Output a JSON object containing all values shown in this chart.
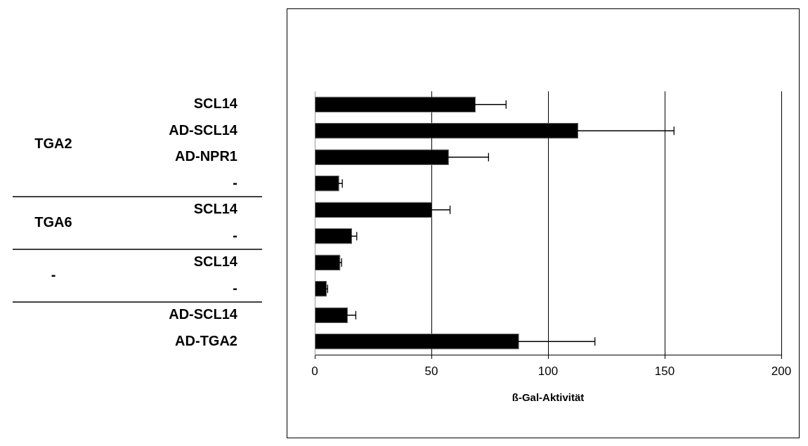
{
  "chart_data": {
    "type": "bar",
    "orientation": "horizontal",
    "xlabel": "ß-Gal-Aktivität",
    "categories": [
      "SCL14",
      "AD-SCL14",
      "AD-NPR1",
      "-",
      "SCL14",
      "-",
      "SCL14",
      "-",
      "AD-SCL14",
      "AD-TGA2"
    ],
    "values": [
      69,
      113,
      57.5,
      10.5,
      50.4,
      16,
      11,
      5.2,
      14.2,
      87.6
    ],
    "errors": [
      13,
      41,
      17,
      1.3,
      7.6,
      2,
      0.5,
      0.3,
      3.4,
      32.5
    ],
    "color": "#000000",
    "xlim": [
      0,
      200
    ],
    "xticks": [
      0,
      50,
      100,
      150,
      200
    ],
    "grid": "x",
    "annotations": [
      "TGA2",
      "TGA6",
      "-"
    ]
  }
}
